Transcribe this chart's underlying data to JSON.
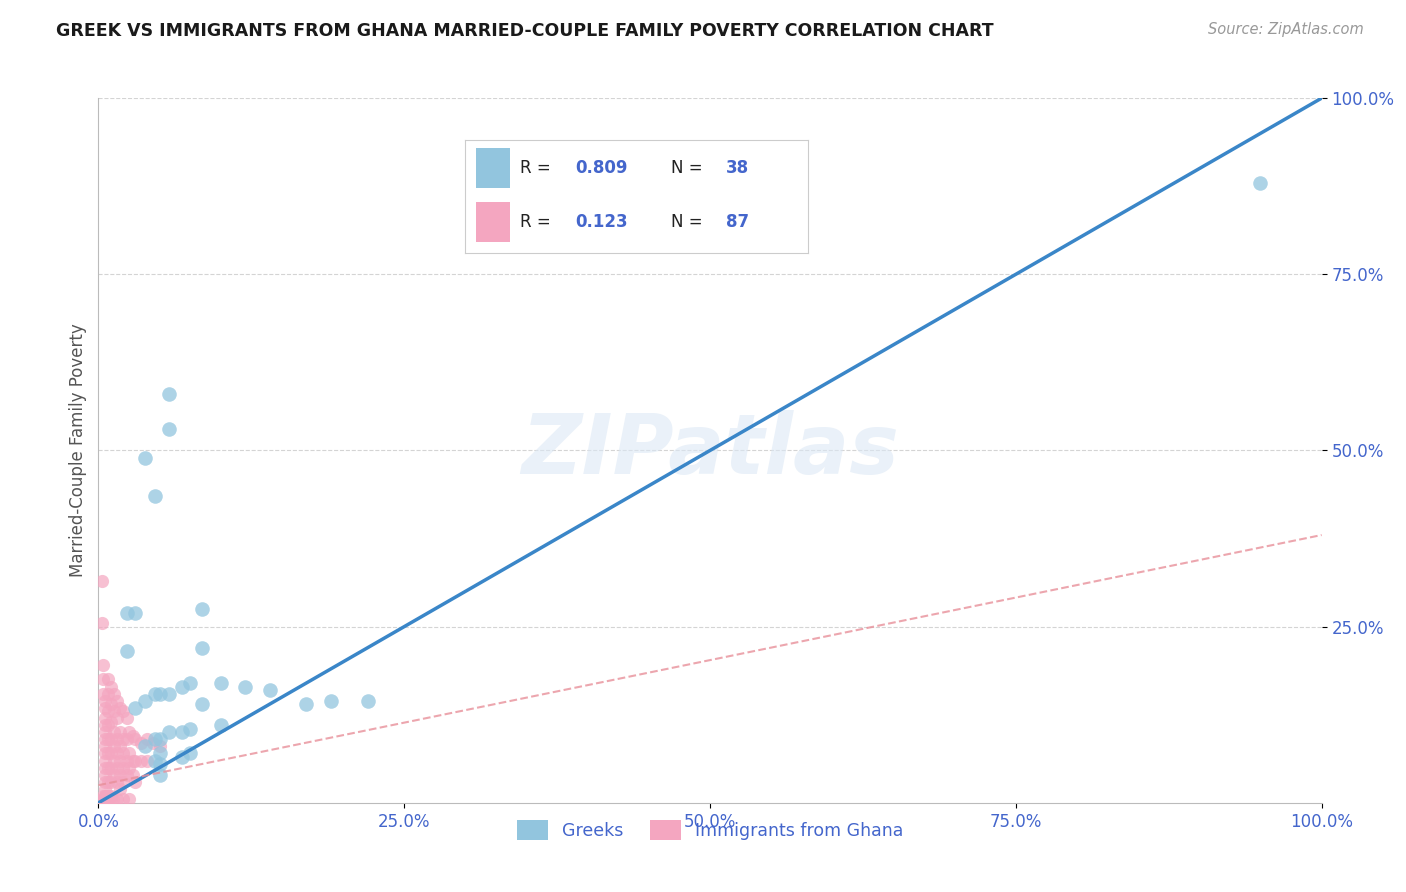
{
  "title": "GREEK VS IMMIGRANTS FROM GHANA MARRIED-COUPLE FAMILY POVERTY CORRELATION CHART",
  "source": "Source: ZipAtlas.com",
  "ylabel": "Married-Couple Family Poverty",
  "xlim": [
    0.0,
    1.0
  ],
  "ylim": [
    0.0,
    1.0
  ],
  "xtick_labels": [
    "0.0%",
    "25.0%",
    "50.0%",
    "75.0%",
    "100.0%"
  ],
  "xtick_vals": [
    0.0,
    0.25,
    0.5,
    0.75,
    1.0
  ],
  "ytick_labels": [
    "25.0%",
    "50.0%",
    "75.0%",
    "100.0%"
  ],
  "ytick_vals": [
    0.25,
    0.5,
    0.75,
    1.0
  ],
  "blue_color": "#92c5de",
  "pink_color": "#f4a6c0",
  "blue_line_color": "#3a86c8",
  "pink_line_color": "#e8909a",
  "legend_label1": "Greeks",
  "legend_label2": "Immigrants from Ghana",
  "watermark": "ZIPatlas",
  "title_color": "#1a1a1a",
  "tick_color": "#4466cc",
  "grid_color": "#d0d0d0",
  "blue_scatter": [
    [
      0.023,
      0.27
    ],
    [
      0.023,
      0.215
    ],
    [
      0.03,
      0.27
    ],
    [
      0.03,
      0.135
    ],
    [
      0.038,
      0.49
    ],
    [
      0.038,
      0.145
    ],
    [
      0.038,
      0.08
    ],
    [
      0.046,
      0.435
    ],
    [
      0.046,
      0.155
    ],
    [
      0.046,
      0.09
    ],
    [
      0.046,
      0.06
    ],
    [
      0.05,
      0.155
    ],
    [
      0.05,
      0.09
    ],
    [
      0.05,
      0.07
    ],
    [
      0.05,
      0.055
    ],
    [
      0.05,
      0.04
    ],
    [
      0.058,
      0.58
    ],
    [
      0.058,
      0.53
    ],
    [
      0.058,
      0.155
    ],
    [
      0.058,
      0.1
    ],
    [
      0.068,
      0.165
    ],
    [
      0.068,
      0.1
    ],
    [
      0.068,
      0.065
    ],
    [
      0.075,
      0.17
    ],
    [
      0.075,
      0.105
    ],
    [
      0.075,
      0.07
    ],
    [
      0.085,
      0.275
    ],
    [
      0.085,
      0.22
    ],
    [
      0.085,
      0.14
    ],
    [
      0.1,
      0.17
    ],
    [
      0.1,
      0.11
    ],
    [
      0.12,
      0.165
    ],
    [
      0.14,
      0.16
    ],
    [
      0.17,
      0.14
    ],
    [
      0.19,
      0.145
    ],
    [
      0.22,
      0.145
    ],
    [
      0.95,
      0.88
    ]
  ],
  "pink_scatter": [
    [
      0.003,
      0.315
    ],
    [
      0.003,
      0.255
    ],
    [
      0.004,
      0.195
    ],
    [
      0.004,
      0.175
    ],
    [
      0.004,
      0.155
    ],
    [
      0.005,
      0.145
    ],
    [
      0.005,
      0.135
    ],
    [
      0.005,
      0.12
    ],
    [
      0.005,
      0.11
    ],
    [
      0.005,
      0.1
    ],
    [
      0.005,
      0.09
    ],
    [
      0.005,
      0.08
    ],
    [
      0.005,
      0.07
    ],
    [
      0.005,
      0.06
    ],
    [
      0.005,
      0.05
    ],
    [
      0.005,
      0.04
    ],
    [
      0.005,
      0.03
    ],
    [
      0.005,
      0.02
    ],
    [
      0.005,
      0.01
    ],
    [
      0.005,
      0.005
    ],
    [
      0.008,
      0.175
    ],
    [
      0.008,
      0.155
    ],
    [
      0.008,
      0.13
    ],
    [
      0.008,
      0.11
    ],
    [
      0.008,
      0.09
    ],
    [
      0.008,
      0.07
    ],
    [
      0.008,
      0.05
    ],
    [
      0.008,
      0.03
    ],
    [
      0.008,
      0.01
    ],
    [
      0.01,
      0.165
    ],
    [
      0.01,
      0.14
    ],
    [
      0.01,
      0.115
    ],
    [
      0.01,
      0.09
    ],
    [
      0.01,
      0.07
    ],
    [
      0.01,
      0.05
    ],
    [
      0.01,
      0.03
    ],
    [
      0.01,
      0.01
    ],
    [
      0.013,
      0.155
    ],
    [
      0.013,
      0.13
    ],
    [
      0.013,
      0.1
    ],
    [
      0.013,
      0.08
    ],
    [
      0.013,
      0.06
    ],
    [
      0.013,
      0.04
    ],
    [
      0.015,
      0.145
    ],
    [
      0.015,
      0.12
    ],
    [
      0.015,
      0.09
    ],
    [
      0.015,
      0.07
    ],
    [
      0.015,
      0.05
    ],
    [
      0.015,
      0.03
    ],
    [
      0.018,
      0.135
    ],
    [
      0.018,
      0.1
    ],
    [
      0.018,
      0.08
    ],
    [
      0.018,
      0.06
    ],
    [
      0.018,
      0.04
    ],
    [
      0.018,
      0.02
    ],
    [
      0.02,
      0.13
    ],
    [
      0.02,
      0.09
    ],
    [
      0.02,
      0.07
    ],
    [
      0.02,
      0.05
    ],
    [
      0.02,
      0.03
    ],
    [
      0.023,
      0.12
    ],
    [
      0.023,
      0.09
    ],
    [
      0.023,
      0.06
    ],
    [
      0.023,
      0.04
    ],
    [
      0.025,
      0.1
    ],
    [
      0.025,
      0.07
    ],
    [
      0.025,
      0.05
    ],
    [
      0.028,
      0.095
    ],
    [
      0.028,
      0.06
    ],
    [
      0.028,
      0.04
    ],
    [
      0.03,
      0.09
    ],
    [
      0.03,
      0.06
    ],
    [
      0.03,
      0.03
    ],
    [
      0.035,
      0.085
    ],
    [
      0.035,
      0.06
    ],
    [
      0.04,
      0.09
    ],
    [
      0.04,
      0.06
    ],
    [
      0.045,
      0.085
    ],
    [
      0.05,
      0.08
    ],
    [
      0.003,
      0.005
    ],
    [
      0.005,
      0.005
    ],
    [
      0.007,
      0.005
    ],
    [
      0.01,
      0.005
    ],
    [
      0.012,
      0.005
    ],
    [
      0.015,
      0.005
    ],
    [
      0.02,
      0.005
    ],
    [
      0.025,
      0.005
    ],
    [
      0.004,
      0.01
    ],
    [
      0.006,
      0.01
    ],
    [
      0.009,
      0.01
    ]
  ],
  "blue_trend_x": [
    0.0,
    1.0
  ],
  "blue_trend_y": [
    0.0,
    1.0
  ],
  "pink_trend_x": [
    0.0,
    1.0
  ],
  "pink_trend_y": [
    0.025,
    0.38
  ]
}
